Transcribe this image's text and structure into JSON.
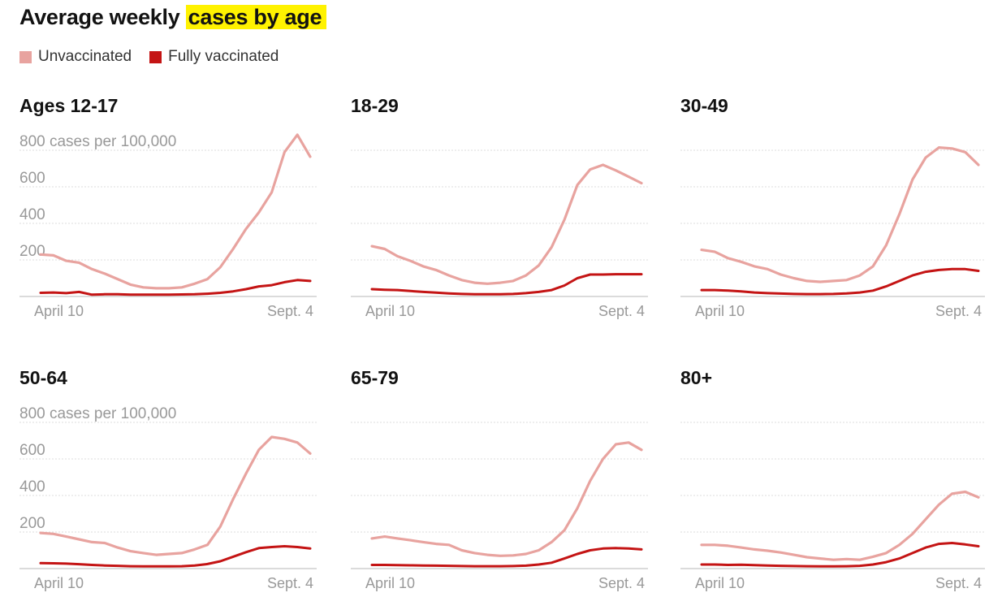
{
  "title_part1": "Average weekly",
  "title_part2": "cases by age",
  "legend": [
    {
      "label": "Unvaccinated",
      "color": "#e8a39f"
    },
    {
      "label": "Fully vaccinated",
      "color": "#c41414"
    }
  ],
  "chart_data": [
    {
      "type": "line",
      "title": "Ages 12-17",
      "ylim": [
        0,
        800
      ],
      "yticks": [
        200,
        400,
        600,
        800
      ],
      "ytick_labels": [
        "200",
        "400",
        "600",
        "800 cases per 100,000"
      ],
      "x_tick_labels": [
        "April 10",
        "Sept. 4"
      ],
      "series": [
        {
          "name": "Unvaccinated",
          "color": "#e8a39f",
          "values": [
            230,
            225,
            195,
            185,
            150,
            125,
            95,
            65,
            50,
            45,
            45,
            50,
            70,
            95,
            160,
            260,
            370,
            460,
            570,
            790,
            885,
            765
          ]
        },
        {
          "name": "Fully vaccinated",
          "color": "#c41414",
          "values": [
            20,
            22,
            18,
            25,
            10,
            12,
            12,
            10,
            10,
            10,
            10,
            11,
            12,
            15,
            20,
            28,
            40,
            55,
            62,
            78,
            90,
            85
          ]
        }
      ]
    },
    {
      "type": "line",
      "title": "18-29",
      "ylim": [
        0,
        800
      ],
      "yticks": [
        200,
        400,
        600,
        800
      ],
      "ytick_labels": [
        "",
        "",
        "",
        ""
      ],
      "x_tick_labels": [
        "April 10",
        "Sept. 4"
      ],
      "series": [
        {
          "name": "Unvaccinated",
          "color": "#e8a39f",
          "values": [
            275,
            260,
            220,
            195,
            165,
            145,
            115,
            90,
            75,
            70,
            75,
            85,
            115,
            170,
            270,
            420,
            610,
            695,
            720,
            690,
            655,
            620
          ]
        },
        {
          "name": "Fully vaccinated",
          "color": "#c41414",
          "values": [
            40,
            37,
            35,
            30,
            25,
            21,
            17,
            14,
            12,
            12,
            12,
            14,
            18,
            25,
            35,
            60,
            100,
            120,
            120,
            122,
            122,
            122
          ]
        }
      ]
    },
    {
      "type": "line",
      "title": "30-49",
      "ylim": [
        0,
        800
      ],
      "yticks": [
        200,
        400,
        600,
        800
      ],
      "ytick_labels": [
        "",
        "",
        "",
        ""
      ],
      "x_tick_labels": [
        "April 10",
        "Sept. 4"
      ],
      "series": [
        {
          "name": "Unvaccinated",
          "color": "#e8a39f",
          "values": [
            255,
            245,
            210,
            190,
            165,
            150,
            120,
            100,
            85,
            80,
            85,
            90,
            115,
            165,
            280,
            450,
            640,
            760,
            815,
            810,
            790,
            720
          ]
        },
        {
          "name": "Fully vaccinated",
          "color": "#c41414",
          "values": [
            35,
            35,
            32,
            28,
            22,
            18,
            16,
            14,
            13,
            13,
            14,
            17,
            22,
            32,
            55,
            85,
            115,
            135,
            145,
            150,
            150,
            140
          ]
        }
      ]
    },
    {
      "type": "line",
      "title": "50-64",
      "ylim": [
        0,
        800
      ],
      "yticks": [
        200,
        400,
        600,
        800
      ],
      "ytick_labels": [
        "200",
        "400",
        "600",
        "800 cases per 100,000"
      ],
      "x_tick_labels": [
        "April 10",
        "Sept. 4"
      ],
      "series": [
        {
          "name": "Unvaccinated",
          "color": "#e8a39f",
          "values": [
            195,
            190,
            175,
            160,
            145,
            140,
            115,
            95,
            85,
            75,
            80,
            85,
            105,
            130,
            230,
            380,
            520,
            650,
            720,
            710,
            690,
            630
          ]
        },
        {
          "name": "Fully vaccinated",
          "color": "#c41414",
          "values": [
            30,
            29,
            27,
            24,
            20,
            17,
            15,
            13,
            12,
            12,
            12,
            13,
            17,
            25,
            40,
            65,
            90,
            112,
            118,
            122,
            118,
            110
          ]
        }
      ]
    },
    {
      "type": "line",
      "title": "65-79",
      "ylim": [
        0,
        800
      ],
      "yticks": [
        200,
        400,
        600,
        800
      ],
      "ytick_labels": [
        "",
        "",
        "",
        ""
      ],
      "x_tick_labels": [
        "April 10",
        "Sept. 4"
      ],
      "series": [
        {
          "name": "Unvaccinated",
          "color": "#e8a39f",
          "values": [
            165,
            175,
            165,
            155,
            145,
            135,
            130,
            100,
            85,
            75,
            70,
            72,
            80,
            100,
            145,
            210,
            330,
            480,
            600,
            680,
            690,
            650
          ]
        },
        {
          "name": "Fully vaccinated",
          "color": "#c41414",
          "values": [
            20,
            20,
            19,
            18,
            17,
            16,
            15,
            14,
            13,
            13,
            13,
            14,
            16,
            22,
            32,
            55,
            80,
            100,
            110,
            112,
            110,
            105
          ]
        }
      ]
    },
    {
      "type": "line",
      "title": "80+",
      "ylim": [
        0,
        800
      ],
      "yticks": [
        200,
        400,
        600,
        800
      ],
      "ytick_labels": [
        "",
        "",
        "",
        ""
      ],
      "x_tick_labels": [
        "April 10",
        "Sept. 4"
      ],
      "series": [
        {
          "name": "Unvaccinated",
          "color": "#e8a39f",
          "values": [
            130,
            130,
            125,
            115,
            105,
            98,
            88,
            75,
            62,
            55,
            48,
            52,
            48,
            65,
            85,
            130,
            190,
            270,
            350,
            410,
            420,
            390
          ]
        },
        {
          "name": "Fully vaccinated",
          "color": "#c41414",
          "values": [
            22,
            22,
            20,
            21,
            19,
            17,
            15,
            14,
            13,
            12,
            12,
            13,
            15,
            22,
            35,
            55,
            85,
            115,
            135,
            140,
            132,
            122
          ]
        }
      ]
    }
  ]
}
